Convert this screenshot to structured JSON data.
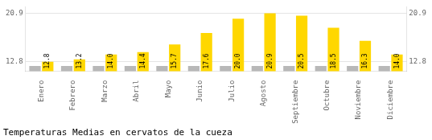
{
  "chart_data": {
    "type": "bar",
    "title": "Temperaturas Medias en cervatos de la cueza",
    "categories": [
      "Enero",
      "Febrero",
      "Marzo",
      "Abril",
      "Mayo",
      "Junio",
      "Julio",
      "Agosto",
      "Septiembre",
      "Octubre",
      "Noviembre",
      "Diciembre"
    ],
    "series": [
      {
        "color": "#B8B8B8",
        "values": [
          12.1,
          12.1,
          12.1,
          12.1,
          12.1,
          12.1,
          12.1,
          12.1,
          12.1,
          12.1,
          12.1,
          12.1
        ]
      },
      {
        "color": "#FFD700",
        "values": [
          12.8,
          13.2,
          14.0,
          14.4,
          15.7,
          17.6,
          20.0,
          20.9,
          20.5,
          18.5,
          16.3,
          14.0
        ],
        "value_labels": [
          "12.8",
          "13.2",
          "14.0",
          "14.4",
          "15.7",
          "17.6",
          "20.0",
          "20.9",
          "20.5",
          "18.5",
          "16.3",
          "14.0"
        ]
      }
    ],
    "ylim": [
      11.2,
      22.0
    ],
    "yticks": [
      12.8,
      20.9
    ],
    "y2lim": [
      11.2,
      22.0
    ],
    "y2ticks": [
      12.8,
      20.9
    ],
    "grid": true,
    "data_labels": true
  }
}
